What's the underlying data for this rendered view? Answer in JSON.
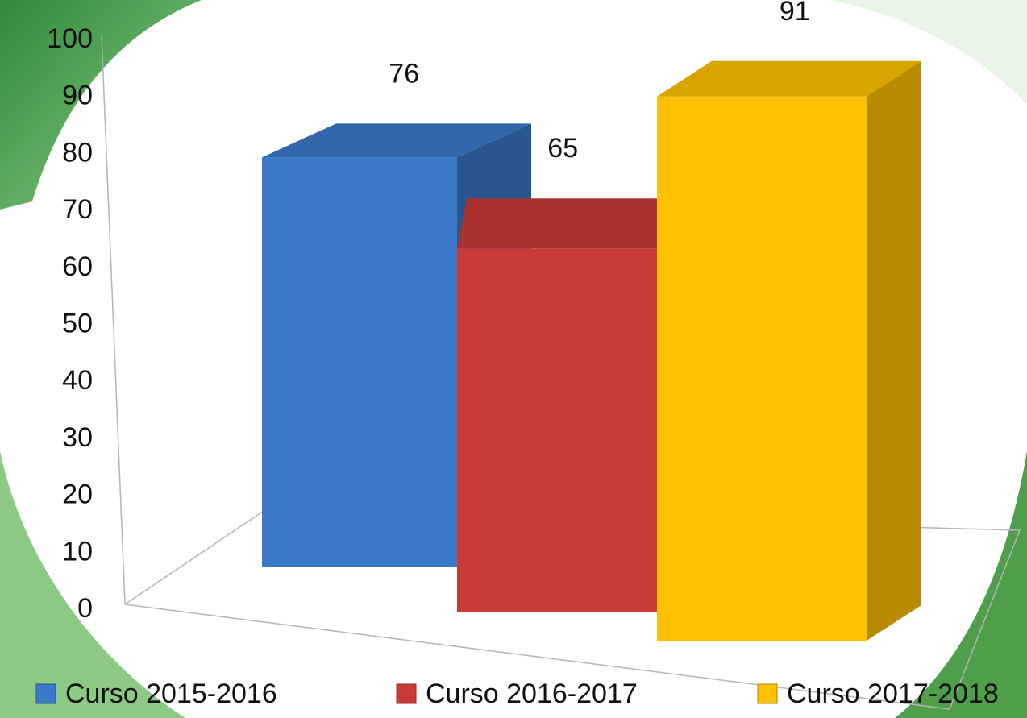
{
  "chart_data": {
    "type": "bar3d",
    "series": [
      {
        "name": "Curso 2015-2016",
        "color": "#3a78c8",
        "values": [
          76
        ]
      },
      {
        "name": "Curso 2016-2017",
        "color": "#c93a36",
        "values": [
          65
        ]
      },
      {
        "name": "Curso 2017-2018",
        "color": "#ffc000",
        "values": [
          91
        ]
      }
    ],
    "ylim": [
      0,
      100
    ],
    "yticks": [
      0,
      10,
      20,
      30,
      40,
      50,
      60,
      70,
      80,
      90,
      100
    ],
    "legend": "bottom",
    "data_labels": true
  }
}
